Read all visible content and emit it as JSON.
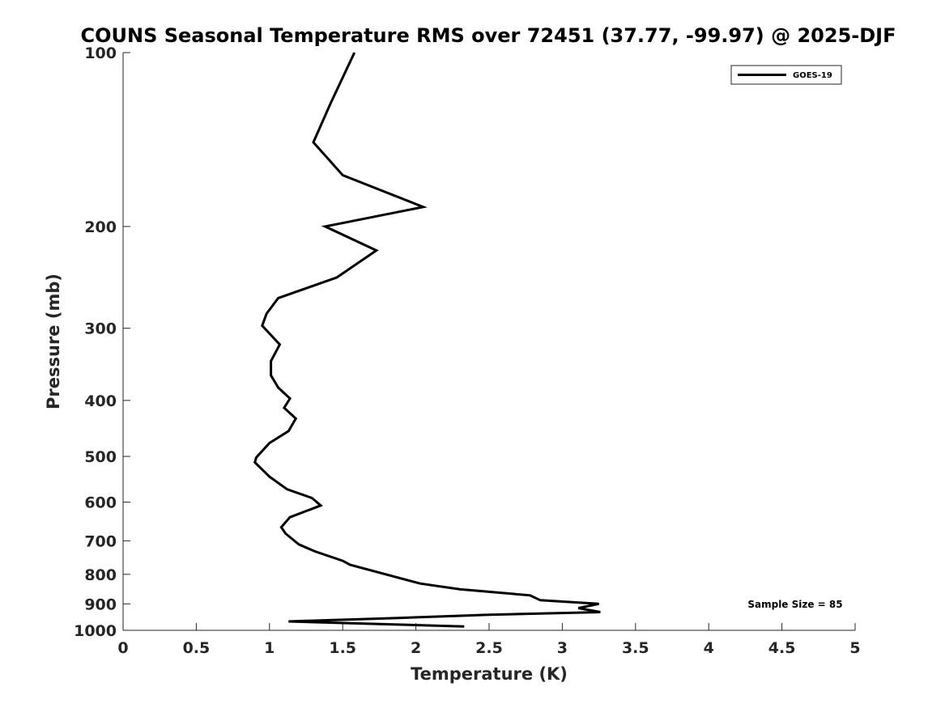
{
  "chart_data": {
    "type": "line",
    "title": "COUNS Seasonal Temperature RMS over 72451 (37.77, -99.97) @ 2025-DJF",
    "xlabel": "Temperature (K)",
    "ylabel": "Pressure (mb)",
    "xlim": [
      0,
      5
    ],
    "ylim": [
      1000,
      100
    ],
    "y_scale": "log",
    "y_reversed": true,
    "grid": false,
    "legend_position": "top-right",
    "x_ticks": [
      0,
      0.5,
      1,
      1.5,
      2,
      2.5,
      3,
      3.5,
      4,
      4.5,
      5
    ],
    "x_tick_labels": [
      "0",
      "0.5",
      "1",
      "1.5",
      "2",
      "2.5",
      "3",
      "3.5",
      "4",
      "4.5",
      "5"
    ],
    "y_ticks": [
      100,
      200,
      300,
      400,
      500,
      600,
      700,
      800,
      900,
      1000
    ],
    "y_tick_labels": [
      "100",
      "200",
      "300",
      "400",
      "500",
      "600",
      "700",
      "800",
      "900",
      "1000"
    ],
    "series": [
      {
        "name": "GOES-19",
        "color": "#000000",
        "x": [
          1.58,
          1.42,
          1.3,
          1.5,
          2.05,
          1.38,
          1.73,
          1.46,
          1.06,
          0.98,
          0.95,
          1.07,
          1.01,
          1.01,
          1.06,
          1.14,
          1.1,
          1.18,
          1.13,
          1.0,
          0.91,
          0.9,
          1.0,
          1.12,
          1.29,
          1.35,
          1.14,
          1.08,
          1.11,
          1.14,
          1.2,
          1.31,
          1.5,
          1.55,
          2.03,
          2.3,
          2.78,
          2.85,
          3.25,
          3.11,
          3.26,
          2.5,
          1.88,
          1.13,
          2.33
        ],
        "y": [
          100,
          122,
          143,
          163,
          185,
          200,
          220,
          245,
          266,
          283,
          297,
          320,
          342,
          362,
          380,
          397,
          412,
          430,
          452,
          474,
          502,
          512,
          542,
          570,
          590,
          608,
          637,
          663,
          680,
          690,
          710,
          730,
          758,
          770,
          830,
          849,
          870,
          887,
          900,
          915,
          930,
          940,
          952,
          965,
          985
        ]
      }
    ]
  },
  "annotation": "Sample Size = 85"
}
